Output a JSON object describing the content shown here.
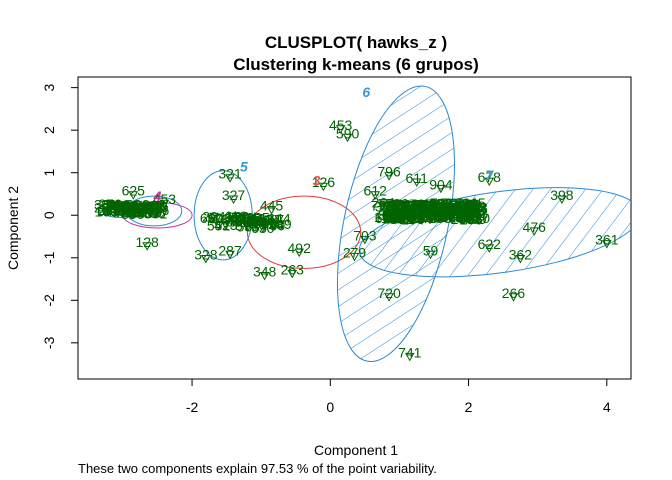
{
  "chart_data": {
    "type": "scatter",
    "title": "CLUSPLOT( hawks_z )",
    "subtitle": "Clustering k-means (6 grupos)",
    "xlabel": "Component 1",
    "ylabel": "Component 2",
    "footer": "These two components explain 97.53 % of the point variability.",
    "xlim": [
      -3.65,
      4.35
    ],
    "ylim": [
      -3.85,
      3.25
    ],
    "xticks": [
      "-2",
      "0",
      "2",
      "4"
    ],
    "xtick_values": [
      -2,
      0,
      2,
      4
    ],
    "yticks": [
      "-3",
      "-2",
      "-1",
      "0",
      "1",
      "2",
      "3"
    ],
    "ytick_values": [
      -3,
      -2,
      -1,
      0,
      1,
      2,
      3
    ],
    "colors": {
      "points": "#006400",
      "ellipse_blue": "#2a8ad4",
      "ellipse_red": "#e03c3c",
      "ellipse_magenta": "#c0399a",
      "cluster_blue": "#3399dd",
      "cluster_red": "#e05555",
      "cluster_magenta": "#c0399a"
    },
    "ellipses": [
      {
        "cluster": "1",
        "center": [
          -2.5,
          0.0
        ],
        "rx": 0.5,
        "ry": 0.3,
        "angle": 0,
        "color": "#c0399a",
        "shaded": false
      },
      {
        "cluster": "2",
        "center": [
          -3.05,
          0.1
        ],
        "rx": 0.25,
        "ry": 0.15,
        "angle": 0,
        "color": "#2a8ad4",
        "shaded": false
      },
      {
        "cluster": "3",
        "center": [
          -0.38,
          -0.4
        ],
        "rx": 0.82,
        "ry": 0.85,
        "angle": 0,
        "color": "#e03c3c",
        "shaded": false
      },
      {
        "cluster": "4",
        "center": [
          -2.55,
          0.1
        ],
        "rx": 0.4,
        "ry": 0.35,
        "angle": 0,
        "color": "#2a8ad4",
        "shaded": false
      },
      {
        "cluster": "5",
        "center": [
          -1.55,
          0.0
        ],
        "rx": 0.42,
        "ry": 1.05,
        "angle": 0,
        "color": "#2a8ad4",
        "shaded": false
      },
      {
        "cluster": "6",
        "center": [
          0.95,
          -0.2
        ],
        "rx": 0.75,
        "ry": 3.3,
        "angle": 12,
        "color": "#2a8ad4",
        "shaded": true
      },
      {
        "cluster": "7",
        "center": [
          2.45,
          -0.4
        ],
        "rx": 2.05,
        "ry": 0.95,
        "angle": -8,
        "color": "#2a8ad4",
        "shaded": true
      }
    ],
    "cluster_labels": [
      {
        "text": "6",
        "x": 0.52,
        "y": 2.9,
        "color": "#3399dd"
      },
      {
        "text": "5",
        "x": -1.25,
        "y": 1.15,
        "color": "#3399dd"
      },
      {
        "text": "3",
        "x": -0.2,
        "y": 0.82,
        "color": "#e05555"
      },
      {
        "text": "7",
        "x": 2.3,
        "y": 0.95,
        "color": "#3399dd"
      },
      {
        "text": "4",
        "x": -2.5,
        "y": 0.45,
        "color": "#c0399a"
      }
    ],
    "point_labels": [
      {
        "label": "453",
        "x": 0.15,
        "y": 2.15
      },
      {
        "label": "590",
        "x": 0.25,
        "y": 1.95
      },
      {
        "label": "796",
        "x": 0.85,
        "y": 1.05
      },
      {
        "label": "611",
        "x": 1.25,
        "y": 0.9
      },
      {
        "label": "904",
        "x": 1.6,
        "y": 0.75
      },
      {
        "label": "678",
        "x": 2.3,
        "y": 0.92
      },
      {
        "label": "398",
        "x": 3.35,
        "y": 0.5
      },
      {
        "label": "476",
        "x": 2.95,
        "y": -0.25
      },
      {
        "label": "361",
        "x": 4.0,
        "y": -0.55
      },
      {
        "label": "622",
        "x": 2.3,
        "y": -0.65
      },
      {
        "label": "362",
        "x": 2.75,
        "y": -0.9
      },
      {
        "label": "266",
        "x": 2.65,
        "y": -1.8
      },
      {
        "label": "59",
        "x": 1.45,
        "y": -0.8
      },
      {
        "label": "720",
        "x": 0.85,
        "y": -1.8
      },
      {
        "label": "741",
        "x": 1.15,
        "y": -3.2
      },
      {
        "label": "126",
        "x": -0.1,
        "y": 0.8
      },
      {
        "label": "445",
        "x": -0.85,
        "y": 0.25
      },
      {
        "label": "492",
        "x": -0.45,
        "y": -0.75
      },
      {
        "label": "348",
        "x": -0.95,
        "y": -1.3
      },
      {
        "label": "263",
        "x": -0.55,
        "y": -1.25
      },
      {
        "label": "321",
        "x": -1.45,
        "y": 1.0
      },
      {
        "label": "327",
        "x": -1.4,
        "y": 0.5
      },
      {
        "label": "328",
        "x": -1.8,
        "y": -0.9
      },
      {
        "label": "287",
        "x": -1.45,
        "y": -0.8
      },
      {
        "label": "612",
        "x": 0.65,
        "y": 0.6
      },
      {
        "label": "703",
        "x": 0.5,
        "y": -0.45
      },
      {
        "label": "279",
        "x": 0.35,
        "y": -0.85
      },
      {
        "label": "625",
        "x": -2.85,
        "y": 0.6
      },
      {
        "label": "453",
        "x": -2.4,
        "y": 0.4
      },
      {
        "label": "128",
        "x": -2.65,
        "y": -0.6
      }
    ],
    "clusters_dense": [
      {
        "cx": -2.85,
        "cy": 0.15,
        "sx": 0.4,
        "sy": 0.12,
        "n": 40
      },
      {
        "cx": -1.45,
        "cy": -0.15,
        "sx": 0.3,
        "sy": 0.15,
        "n": 14
      },
      {
        "cx": -0.95,
        "cy": -0.2,
        "sx": 0.25,
        "sy": 0.15,
        "n": 14
      },
      {
        "cx": 1.45,
        "cy": 0.1,
        "sx": 0.7,
        "sy": 0.2,
        "n": 110
      }
    ]
  }
}
